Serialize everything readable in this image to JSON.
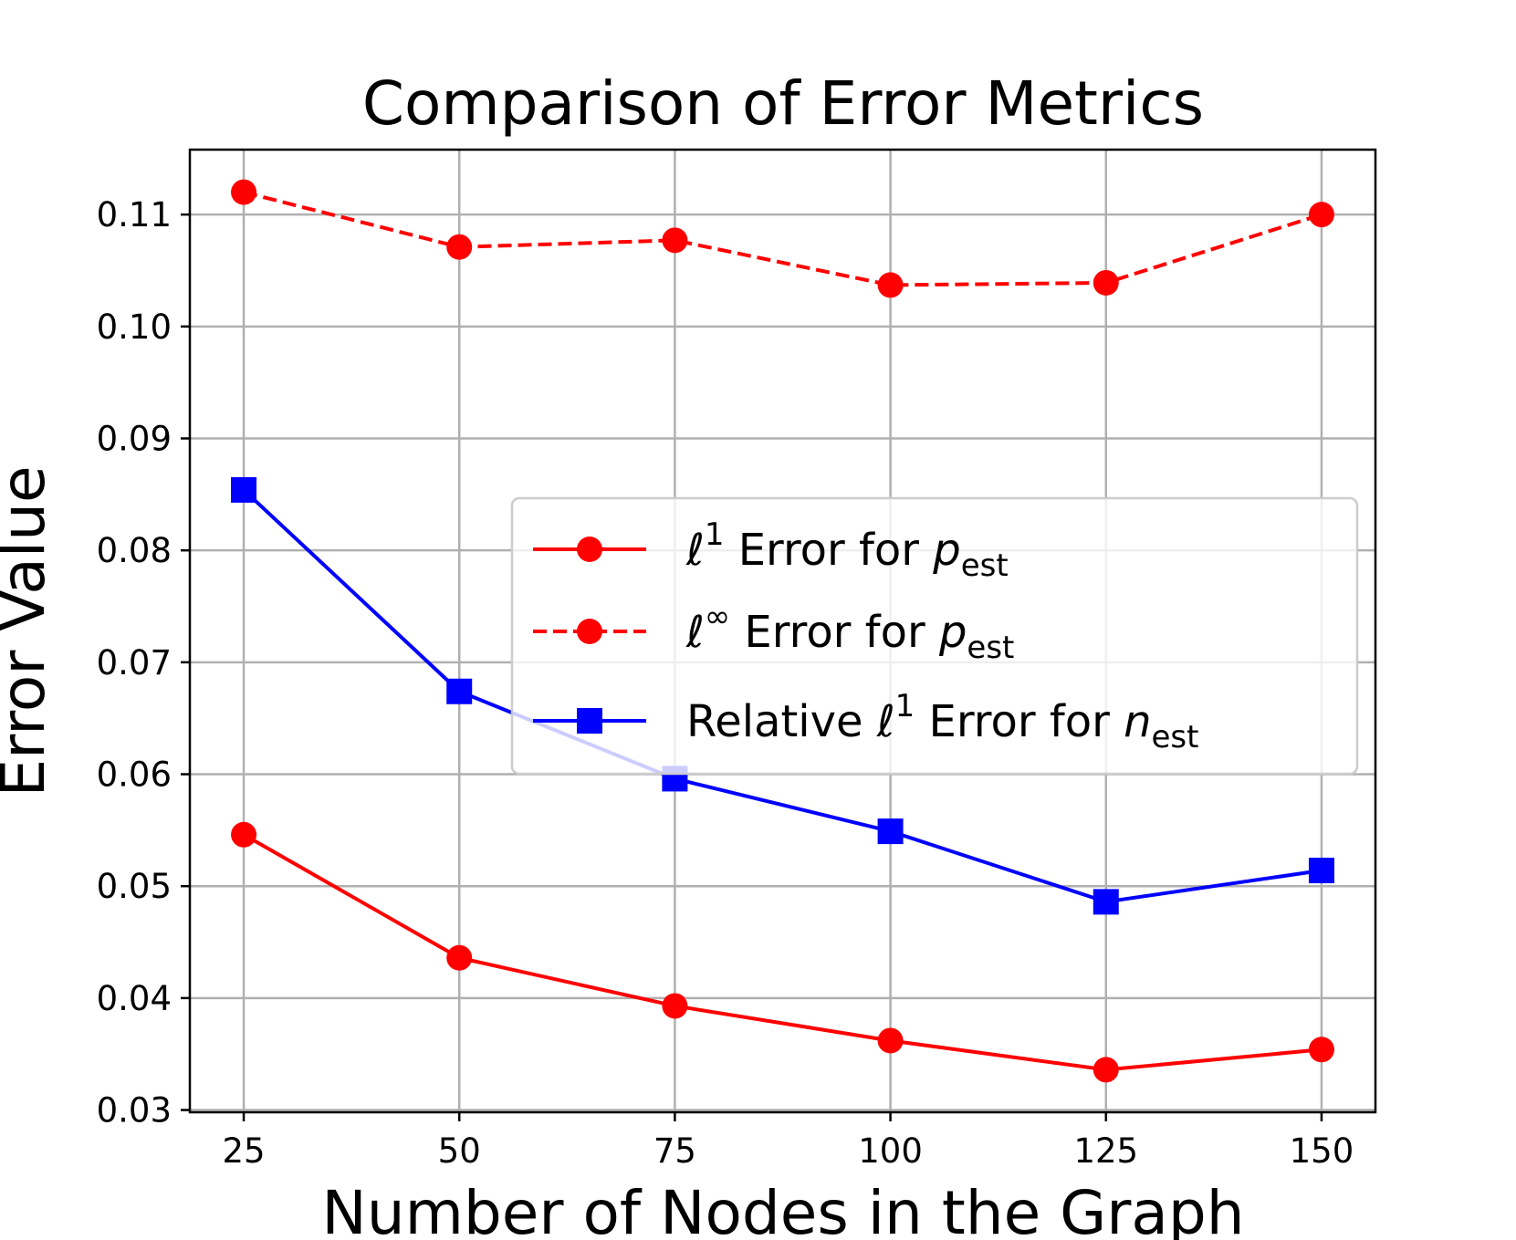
{
  "chart_data": {
    "type": "line",
    "title": "Comparison of Error Metrics",
    "xlabel": "Number of Nodes in the Graph",
    "ylabel": "Error Value",
    "x": [
      25,
      50,
      75,
      100,
      125,
      150
    ],
    "xlim": [
      18.75,
      156.25
    ],
    "ylim": [
      0.0298,
      0.1158
    ],
    "xticks": [
      "25",
      "50",
      "75",
      "100",
      "125",
      "150"
    ],
    "yticks": [
      "0.03",
      "0.04",
      "0.05",
      "0.06",
      "0.07",
      "0.08",
      "0.09",
      "0.10",
      "0.11"
    ],
    "grid": true,
    "legend_position": "center-right",
    "series": [
      {
        "key": "l1_p",
        "legend": {
          "prefix": "",
          "ell": "ℓ",
          "sup": "1",
          "text": " Error for ",
          "var": "p",
          "sub": "est"
        },
        "values": [
          0.0546,
          0.0436,
          0.0393,
          0.0362,
          0.0336,
          0.0354
        ],
        "color": "#ff0000",
        "linestyle": "solid",
        "marker": "circle"
      },
      {
        "key": "linf_p",
        "legend": {
          "prefix": "",
          "ell": "ℓ",
          "sup": "∞",
          "text": " Error for ",
          "var": "p",
          "sub": "est"
        },
        "values": [
          0.112,
          0.1071,
          0.1077,
          0.1037,
          0.1039,
          0.11
        ],
        "color": "#ff0000",
        "linestyle": "dashed",
        "marker": "circle"
      },
      {
        "key": "rel_l1_n",
        "legend": {
          "prefix": "Relative ",
          "ell": "ℓ",
          "sup": "1",
          "text": " Error for ",
          "var": "n",
          "sub": "est"
        },
        "values": [
          0.0854,
          0.0674,
          0.0596,
          0.0549,
          0.0486,
          0.0514
        ],
        "color": "#0000ff",
        "linestyle": "solid",
        "marker": "square"
      }
    ]
  }
}
